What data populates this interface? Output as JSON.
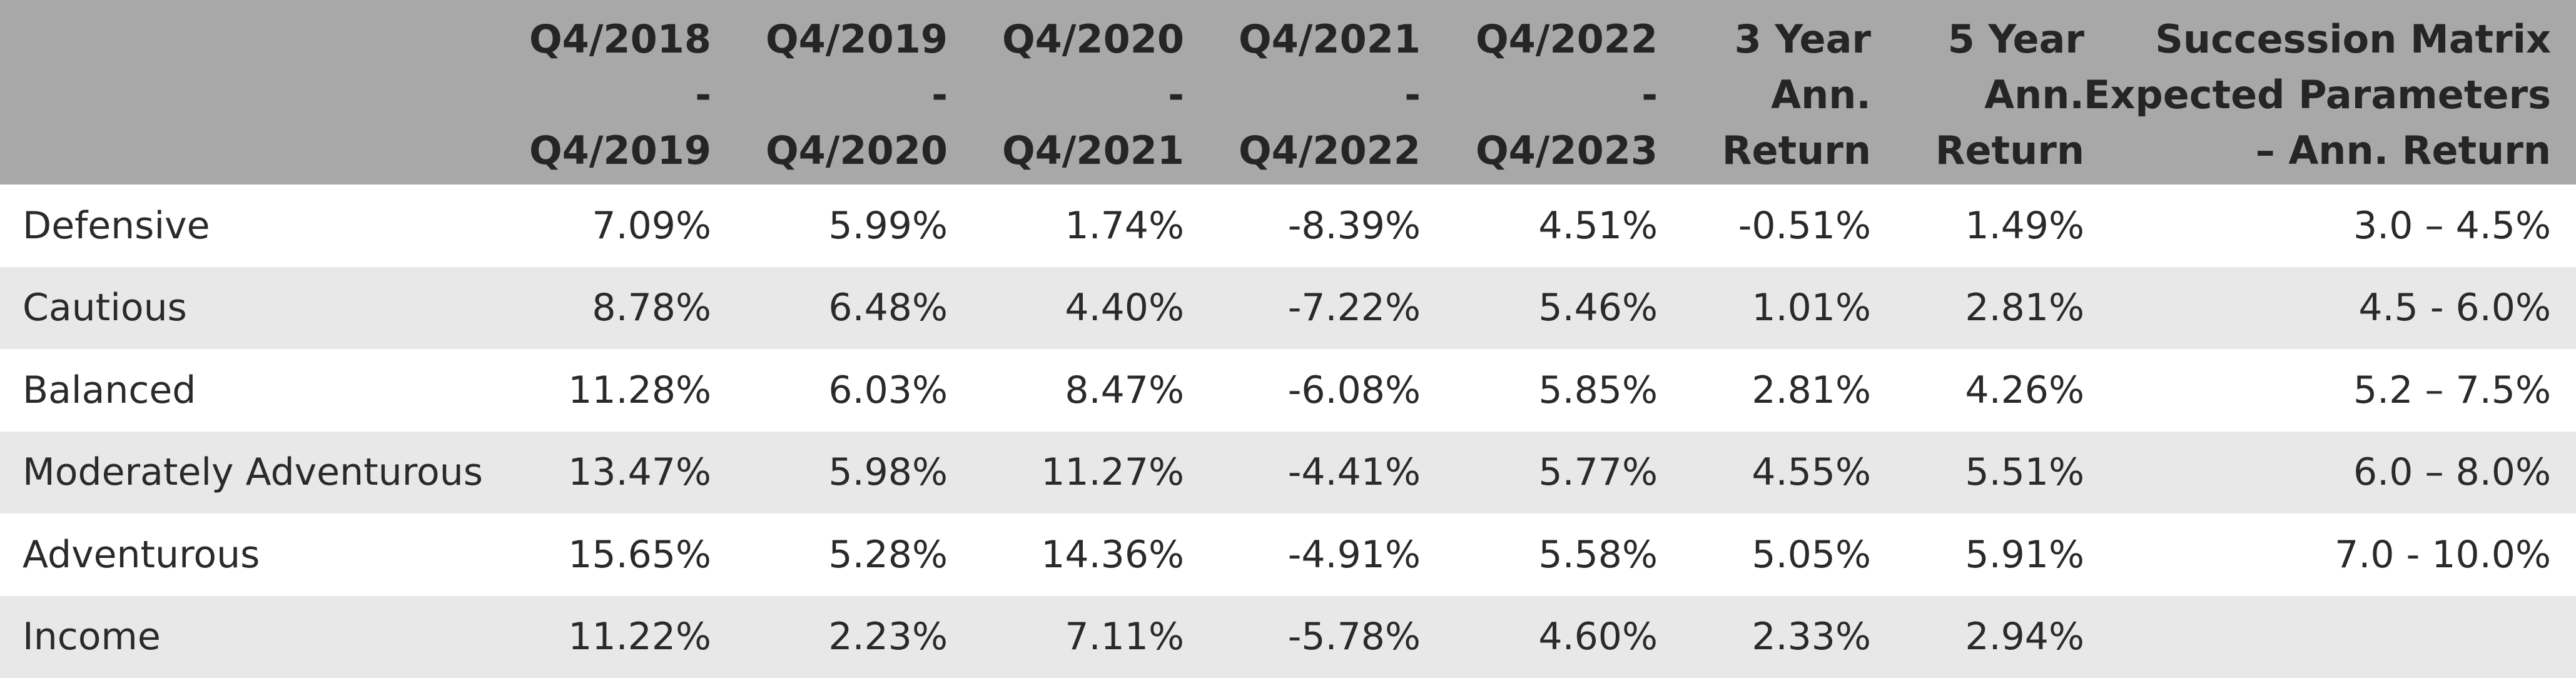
{
  "table": {
    "header": [
      [],
      [
        "Q4/2018",
        "-",
        "Q4/2019"
      ],
      [
        "Q4/2019",
        "-",
        "Q4/2020"
      ],
      [
        "Q4/2020",
        "-",
        "Q4/2021"
      ],
      [
        "Q4/2021",
        "-",
        "Q4/2022"
      ],
      [
        "Q4/2022",
        "-",
        "Q4/2023"
      ],
      [
        "3 Year",
        "Ann.",
        "Return"
      ],
      [
        "5 Year",
        "Ann.",
        "Return"
      ],
      [
        "Succession Matrix",
        "Expected Parameters",
        "– Ann. Return"
      ]
    ],
    "rows": [
      [
        "Defensive",
        "7.09%",
        "5.99%",
        "1.74%",
        "-8.39%",
        "4.51%",
        "-0.51%",
        "1.49%",
        "3.0 – 4.5%"
      ],
      [
        "Cautious",
        "8.78%",
        "6.48%",
        "4.40%",
        "-7.22%",
        "5.46%",
        "1.01%",
        "2.81%",
        "4.5 - 6.0%"
      ],
      [
        "Balanced",
        "11.28%",
        "6.03%",
        "8.47%",
        "-6.08%",
        "5.85%",
        "2.81%",
        "4.26%",
        "5.2 – 7.5%"
      ],
      [
        "Moderately Adventurous",
        "13.47%",
        "5.98%",
        "11.27%",
        "-4.41%",
        "5.77%",
        "4.55%",
        "5.51%",
        "6.0 – 8.0%"
      ],
      [
        "Adventurous",
        "15.65%",
        "5.28%",
        "14.36%",
        "-4.91%",
        "5.58%",
        "5.05%",
        "5.91%",
        "7.0 - 10.0%"
      ],
      [
        "Income",
        "11.22%",
        "2.23%",
        "7.11%",
        "-5.78%",
        "4.60%",
        "2.33%",
        "2.94%"
      ]
    ]
  }
}
